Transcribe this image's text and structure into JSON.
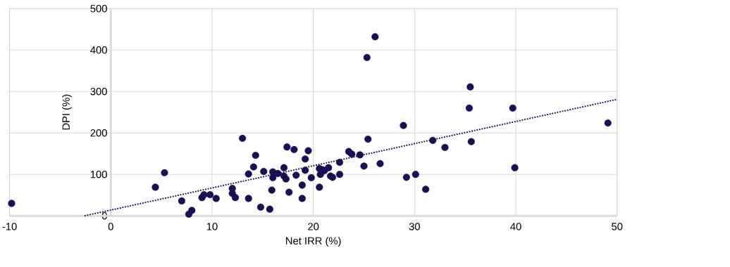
{
  "chart_data": {
    "type": "scatter",
    "xlabel": "Net IRR (%)",
    "ylabel": "DPI (%)",
    "xlim": [
      -10,
      50
    ],
    "ylim": [
      0,
      500
    ],
    "xticks": [
      -10,
      0,
      10,
      20,
      30,
      40,
      50
    ],
    "yticks": [
      0,
      100,
      200,
      300,
      400,
      500
    ],
    "grid": true,
    "series": [
      {
        "color": "#1c0e54",
        "marker": "circle",
        "x": [
          -9.8,
          4.4,
          5.3,
          7.0,
          7.7,
          8.0,
          9.0,
          9.2,
          9.8,
          10.4,
          12.0,
          12.0,
          12.3,
          13.0,
          13.6,
          13.6,
          14.1,
          14.3,
          14.8,
          15.1,
          15.7,
          15.9,
          16.0,
          16.0,
          16.5,
          17.1,
          17.1,
          17.3,
          17.4,
          17.6,
          18.1,
          18.3,
          18.9,
          18.9,
          19.2,
          19.2,
          19.5,
          19.8,
          20.6,
          20.6,
          20.7,
          20.9,
          21.1,
          21.5,
          21.7,
          21.9,
          22.6,
          22.6,
          23.5,
          23.8,
          24.6,
          25.0,
          25.3,
          25.4,
          26.1,
          26.6,
          28.9,
          29.2,
          30.1,
          31.1,
          31.8,
          33.0,
          35.4,
          35.5,
          35.6,
          39.7,
          39.9,
          49.1
        ],
        "values": [
          30,
          69,
          104,
          36,
          4,
          13,
          44,
          51,
          51,
          42,
          66,
          54,
          44,
          187,
          101,
          42,
          118,
          146,
          21,
          107,
          16,
          62,
          106,
          92,
          102,
          116,
          96,
          89,
          166,
          57,
          160,
          98,
          74,
          42,
          137,
          110,
          157,
          92,
          114,
          69,
          100,
          111,
          109,
          116,
          96,
          93,
          129,
          100,
          155,
          149,
          147,
          120,
          382,
          185,
          432,
          126,
          218,
          93,
          100,
          64,
          182,
          165,
          260,
          311,
          179,
          260,
          116,
          224
        ]
      },
      {
        "type": "line",
        "color": "#1c0e54",
        "marker": "none",
        "line_style": "dotted",
        "x": [
          -2.6,
          50
        ],
        "values": [
          0,
          281
        ]
      }
    ]
  }
}
